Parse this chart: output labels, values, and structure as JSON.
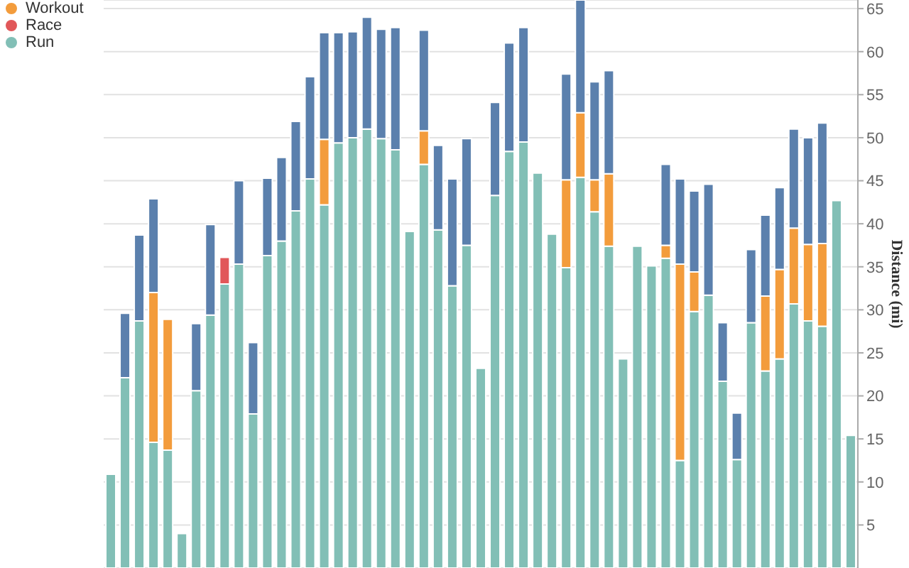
{
  "chart_data": {
    "type": "bar",
    "stacked": true,
    "ylabel": "Distance (mi)",
    "categories": [
      null,
      null,
      null,
      null,
      null,
      null,
      null,
      null,
      null,
      null,
      null,
      null,
      null,
      null,
      null,
      null,
      null,
      null,
      null,
      null,
      null,
      null,
      null,
      null,
      null,
      null,
      null,
      null,
      null,
      null,
      null,
      null,
      null,
      null,
      null,
      null,
      null,
      null,
      null,
      null,
      null,
      null,
      null,
      null,
      null,
      null,
      null,
      null,
      null,
      null,
      null,
      null,
      null
    ],
    "series": [
      {
        "name": "Run",
        "color": "#82bfb6",
        "values": [
          10.9,
          22.1,
          28.7,
          14.6,
          13.7,
          4.0,
          20.6,
          29.4,
          33.0,
          35.3,
          17.9,
          36.3,
          38.0,
          41.5,
          45.2,
          42.2,
          49.4,
          50.0,
          51.0,
          49.9,
          48.6,
          39.1,
          46.9,
          39.3,
          32.8,
          37.5,
          23.2,
          43.3,
          48.4,
          49.5,
          45.9,
          38.8,
          34.9,
          45.4,
          41.4,
          37.4,
          24.3,
          37.4,
          35.1,
          36.0,
          12.5,
          29.8,
          31.7,
          21.7,
          12.6,
          28.5,
          22.9,
          24.3,
          30.7,
          28.7,
          28.1,
          42.7,
          15.4
        ]
      },
      {
        "name": "Race",
        "color": "#e15759",
        "values": [
          null,
          null,
          null,
          null,
          null,
          null,
          null,
          null,
          3.1,
          null,
          null,
          null,
          null,
          null,
          null,
          null,
          null,
          null,
          null,
          null,
          null,
          null,
          null,
          null,
          null,
          null,
          null,
          null,
          null,
          null,
          null,
          null,
          null,
          null,
          null,
          null,
          null,
          null,
          null,
          null,
          null,
          null,
          null,
          null,
          null,
          null,
          null,
          null,
          null,
          null,
          null,
          null,
          null
        ]
      },
      {
        "name": "Workout",
        "color": "#f39c3c",
        "values": [
          null,
          null,
          null,
          17.4,
          15.2,
          null,
          null,
          null,
          null,
          null,
          null,
          null,
          null,
          null,
          null,
          7.6,
          null,
          null,
          null,
          null,
          null,
          null,
          3.9,
          null,
          null,
          null,
          null,
          null,
          null,
          null,
          null,
          null,
          10.2,
          7.5,
          3.7,
          8.4,
          null,
          null,
          null,
          1.5,
          22.8,
          4.6,
          null,
          null,
          null,
          null,
          8.7,
          10.4,
          8.8,
          8.9,
          9.6,
          null,
          null
        ]
      },
      {
        "color": "#5b80ad",
        "values": [
          null,
          7.5,
          10.0,
          10.9,
          null,
          null,
          7.8,
          10.5,
          null,
          9.7,
          8.3,
          9.0,
          9.7,
          10.4,
          11.9,
          12.4,
          12.8,
          12.3,
          13.0,
          12.7,
          14.2,
          null,
          11.7,
          9.8,
          12.4,
          12.4,
          null,
          10.8,
          12.6,
          13.3,
          null,
          null,
          12.3,
          13.1,
          11.4,
          12.0,
          null,
          null,
          null,
          9.4,
          9.9,
          9.4,
          12.9,
          6.8,
          5.4,
          8.5,
          9.4,
          9.5,
          11.5,
          12.4,
          14.0,
          null,
          null
        ]
      }
    ],
    "ylim": [
      0,
      66
    ],
    "yticks": [
      5,
      10,
      15,
      20,
      25,
      30,
      35,
      40,
      45,
      50,
      55,
      60,
      65
    ],
    "grid": "y",
    "legend": "top left"
  }
}
